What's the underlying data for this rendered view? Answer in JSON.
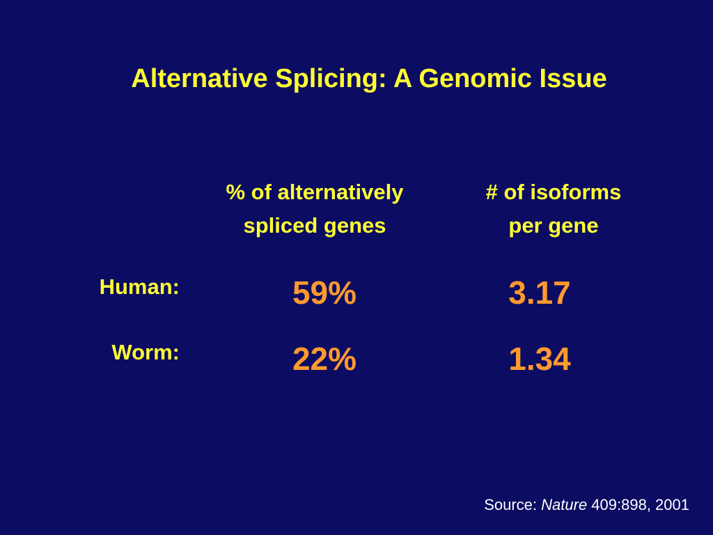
{
  "header": {
    "title": "Alternative Splicing: A Genomic Issue"
  },
  "table": {
    "columns": [
      [
        "% of alternatively",
        "spliced genes"
      ],
      [
        "# of isoforms",
        "per gene"
      ]
    ],
    "rows": [
      {
        "label": "Human:",
        "cells": [
          "59%",
          "3.17"
        ]
      },
      {
        "label": "Worm:",
        "cells": [
          "22%",
          "1.34"
        ]
      }
    ]
  },
  "footer": {
    "source": [
      "Source: ",
      "Nature",
      " 409:898, 2001"
    ]
  }
}
